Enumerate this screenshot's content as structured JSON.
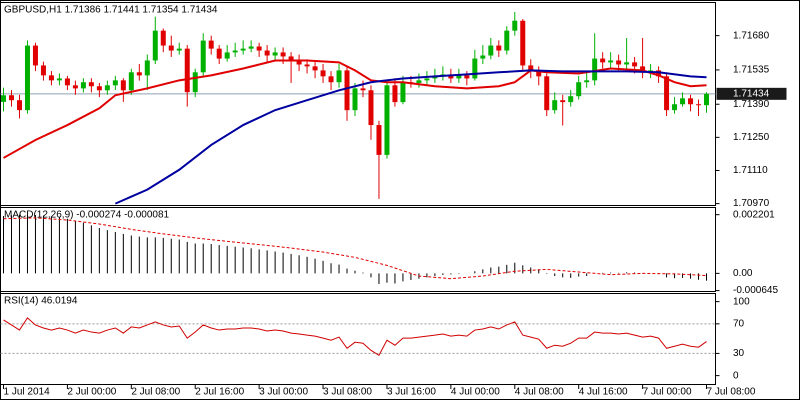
{
  "chart_data": [
    {
      "type": "candlestick",
      "title": "GBPUSD,H1 1.71386 1.71441 1.71354 1.71434",
      "up_color": "#00b000",
      "down_color": "#e00000",
      "open": [
        1.714,
        1.71428,
        1.71407,
        1.71365,
        1.71638,
        1.71554,
        1.71512,
        1.71491,
        1.71499,
        1.7147,
        1.71457,
        1.71483,
        1.71466,
        1.71449,
        1.7147,
        1.71491,
        1.71449,
        1.71525,
        1.71512,
        1.71575,
        1.71701,
        1.71638,
        1.71617,
        1.71625,
        1.71441,
        1.71525,
        1.71659,
        1.71625,
        1.71583,
        1.71609,
        1.71617,
        1.71625,
        1.71634,
        1.71617,
        1.71596,
        1.71609,
        1.71592,
        1.71575,
        1.71558,
        1.7155,
        1.71533,
        1.71508,
        1.71483,
        1.71533,
        1.71365,
        1.71457,
        1.71449,
        1.71302,
        1.71176,
        1.7147,
        1.71399,
        1.71483,
        1.7148,
        1.71491,
        1.71499,
        1.71508,
        1.71516,
        1.71499,
        1.71512,
        1.71499,
        1.71583,
        1.71596,
        1.71638,
        1.71617,
        1.71701,
        1.71743,
        1.71554,
        1.71533,
        1.71508,
        1.71365,
        1.71407,
        1.71399,
        1.71424,
        1.71483,
        1.71491,
        1.71583,
        1.71567,
        1.71575,
        1.71558,
        1.71567,
        1.7155,
        1.71525,
        1.71533,
        1.71508,
        1.71365,
        1.7139,
        1.71415,
        1.7139,
        1.71386
      ],
      "high": [
        1.7146,
        1.7145,
        1.7143,
        1.7166,
        1.7165,
        1.7157,
        1.7153,
        1.7152,
        1.7151,
        1.7149,
        1.715,
        1.715,
        1.7148,
        1.7149,
        1.7151,
        1.715,
        1.7154,
        1.7156,
        1.716,
        1.7176,
        1.7171,
        1.7168,
        1.7165,
        1.7164,
        1.7154,
        1.7169,
        1.7168,
        1.7164,
        1.7164,
        1.7165,
        1.7166,
        1.7166,
        1.7165,
        1.7164,
        1.7163,
        1.7163,
        1.7161,
        1.716,
        1.7158,
        1.7157,
        1.7156,
        1.7153,
        1.7156,
        1.7155,
        1.7148,
        1.7149,
        1.7147,
        1.7132,
        1.7149,
        1.715,
        1.7151,
        1.7151,
        1.7152,
        1.7153,
        1.7154,
        1.7155,
        1.7154,
        1.7154,
        1.7153,
        1.7162,
        1.7164,
        1.7167,
        1.7166,
        1.7172,
        1.7178,
        1.7175,
        1.7158,
        1.7155,
        1.7152,
        1.7144,
        1.7143,
        1.7145,
        1.7151,
        1.7153,
        1.7169,
        1.7161,
        1.7161,
        1.716,
        1.7167,
        1.7159,
        1.7167,
        1.7156,
        1.7155,
        1.7152,
        1.7142,
        1.7144,
        1.7143,
        1.7141,
        1.71441
      ],
      "low": [
        1.7136,
        1.7138,
        1.7133,
        1.7135,
        1.7153,
        1.7149,
        1.7147,
        1.7147,
        1.7145,
        1.7143,
        1.7144,
        1.7144,
        1.7142,
        1.7143,
        1.7145,
        1.714,
        1.7143,
        1.7149,
        1.7145,
        1.7156,
        1.7161,
        1.7159,
        1.716,
        1.7138,
        1.7142,
        1.7151,
        1.716,
        1.7156,
        1.7157,
        1.7159,
        1.716,
        1.7161,
        1.7159,
        1.7157,
        1.7157,
        1.7156,
        1.7148,
        1.7153,
        1.7152,
        1.715,
        1.7148,
        1.7145,
        1.7146,
        1.7132,
        1.7134,
        1.7142,
        1.7124,
        1.7099,
        1.7116,
        1.7138,
        1.7139,
        1.7146,
        1.7146,
        1.7147,
        1.7148,
        1.7149,
        1.7148,
        1.7148,
        1.7147,
        1.7149,
        1.7156,
        1.7158,
        1.7159,
        1.716,
        1.7168,
        1.7153,
        1.715,
        1.7147,
        1.7134,
        1.7135,
        1.713,
        1.7138,
        1.7141,
        1.7146,
        1.7147,
        1.7154,
        1.7154,
        1.7153,
        1.7154,
        1.7152,
        1.715,
        1.715,
        1.7148,
        1.7134,
        1.7135,
        1.7138,
        1.7136,
        1.7134,
        1.71354
      ],
      "close": [
        1.71428,
        1.71407,
        1.71365,
        1.71638,
        1.71554,
        1.71512,
        1.71491,
        1.71499,
        1.7147,
        1.71457,
        1.71483,
        1.71466,
        1.71449,
        1.7147,
        1.71491,
        1.71449,
        1.71525,
        1.71512,
        1.71575,
        1.71701,
        1.71638,
        1.71617,
        1.71625,
        1.71441,
        1.71525,
        1.71659,
        1.71625,
        1.71583,
        1.71609,
        1.71617,
        1.71625,
        1.71634,
        1.71617,
        1.71596,
        1.71609,
        1.71592,
        1.71575,
        1.71558,
        1.7155,
        1.71533,
        1.71508,
        1.71483,
        1.71533,
        1.71365,
        1.71457,
        1.71449,
        1.71302,
        1.71176,
        1.7147,
        1.71399,
        1.71483,
        1.7148,
        1.71491,
        1.71499,
        1.71508,
        1.71516,
        1.71499,
        1.71512,
        1.71499,
        1.71583,
        1.71596,
        1.71638,
        1.71617,
        1.71701,
        1.71743,
        1.71554,
        1.71533,
        1.71508,
        1.71365,
        1.71407,
        1.71399,
        1.71424,
        1.71483,
        1.71491,
        1.71583,
        1.71567,
        1.71575,
        1.71558,
        1.71567,
        1.7155,
        1.71525,
        1.71533,
        1.71508,
        1.71365,
        1.7139,
        1.71415,
        1.7139,
        1.71386,
        1.71434
      ],
      "overlays": [
        {
          "color": "#e00000",
          "x": [
            0,
            4,
            8,
            12,
            14,
            18,
            22,
            26,
            30,
            34,
            38,
            42,
            44,
            46,
            48,
            50,
            54,
            58,
            62,
            64,
            66,
            68,
            72,
            76,
            80,
            82,
            84,
            86,
            88
          ],
          "values": [
            1.71163,
            1.71239,
            1.71302,
            1.71373,
            1.71428,
            1.71457,
            1.71491,
            1.71512,
            1.71541,
            1.71575,
            1.71575,
            1.71567,
            1.71533,
            1.71491,
            1.71483,
            1.71483,
            1.71466,
            1.71457,
            1.71466,
            1.71483,
            1.71533,
            1.71525,
            1.7152,
            1.71541,
            1.71533,
            1.71512,
            1.71483,
            1.71466,
            1.7147
          ]
        },
        {
          "color": "#0000a0",
          "x": [
            14,
            18,
            22,
            26,
            30,
            34,
            38,
            42,
            46,
            50,
            54,
            58,
            62,
            66,
            70,
            74,
            78,
            82,
            86,
            88
          ],
          "values": [
            1.7097,
            1.71029,
            1.71113,
            1.71218,
            1.71302,
            1.71365,
            1.71407,
            1.71449,
            1.71483,
            1.71499,
            1.71508,
            1.71516,
            1.71525,
            1.71533,
            1.71529,
            1.71529,
            1.71529,
            1.71525,
            1.71508,
            1.71504
          ]
        }
      ],
      "last_price": 1.71434,
      "ylim": [
        1.70962,
        1.7182
      ],
      "yticks": [
        {
          "value": 1.7168,
          "label": "1.71680"
        },
        1.71535,
        {
          "value": 1.7139,
          "label": "1.71390"
        },
        {
          "value": 1.7125,
          "label": "1.71250"
        },
        {
          "value": 1.7111,
          "label": "1.71110"
        },
        {
          "value": 1.7097,
          "label": "1.70970"
        }
      ],
      "xlim": [
        -0.375,
        89.125
      ],
      "xticks": [
        {
          "value": 0,
          "label": "1 Jul 2014"
        },
        {
          "value": 8,
          "label": "2 Jul 00:00"
        },
        {
          "value": 16,
          "label": "2 Jul 08:00"
        },
        {
          "value": 24,
          "label": "2 Jul 16:00"
        },
        {
          "value": 32,
          "label": "3 Jul 00:00"
        },
        {
          "value": 40,
          "label": "3 Jul 08:00"
        },
        {
          "value": 48,
          "label": "3 Jul 16:00"
        },
        {
          "value": 56,
          "label": "4 Jul 00:00"
        },
        {
          "value": 64,
          "label": "4 Jul 08:00"
        },
        {
          "value": 72,
          "label": "4 Jul 16:00"
        },
        {
          "value": 80,
          "label": "7 Jul 00:00"
        },
        {
          "value": 88,
          "label": "7 Jul 08:00"
        }
      ]
    },
    {
      "type": "macd",
      "title": "MACD(12,26,9) -0.000274 -0.000081",
      "color": "#000000",
      "values": [
        0.00215,
        0.00218,
        0.0022,
        0.0022,
        0.00219,
        0.00217,
        0.00214,
        0.0021,
        0.00205,
        0.00198,
        0.0019,
        0.0018,
        0.0017,
        0.00162,
        0.00155,
        0.00148,
        0.00142,
        0.00138,
        0.00135,
        0.00135,
        0.00133,
        0.0013,
        0.00127,
        0.00118,
        0.00112,
        0.00112,
        0.0011,
        0.00106,
        0.00103,
        0.001,
        0.00097,
        0.00094,
        0.0009,
        0.00086,
        0.00082,
        0.00078,
        0.00073,
        0.00068,
        0.00062,
        0.00055,
        0.00047,
        0.00038,
        0.00033,
        0.00018,
        0.0001,
        3e-05,
        -0.00015,
        -0.0004,
        -0.00035,
        -0.00038,
        -0.0003,
        -0.00025,
        -0.0002,
        -0.00015,
        -0.0001,
        -6e-05,
        -4e-05,
        -2e-05,
        0.0,
        8e-05,
        0.00015,
        0.00022,
        0.00025,
        0.00032,
        0.0004,
        0.0003,
        0.00022,
        0.00015,
        -2e-05,
        -0.0001,
        -0.00015,
        -0.00017,
        -0.00012,
        -0.0001,
        0.0,
        2e-05,
        3e-05,
        2e-05,
        4e-05,
        3e-05,
        1e-05,
        0.0,
        -3e-05,
        -0.00015,
        -0.00018,
        -0.00017,
        -0.0002,
        -0.00024,
        -0.000274
      ],
      "signal": {
        "color": "#e00000",
        "x": [
          0,
          4,
          8,
          12,
          16,
          20,
          24,
          28,
          32,
          36,
          40,
          44,
          48,
          52,
          56,
          60,
          64,
          68,
          72,
          76,
          80,
          84,
          88
        ],
        "values": [
          0.00205,
          0.00208,
          0.002,
          0.00185,
          0.00165,
          0.00148,
          0.00133,
          0.0012,
          0.00108,
          0.00095,
          0.0008,
          0.0006,
          0.0003,
          -0.0001,
          -0.0002,
          -0.0001,
          8e-05,
          0.00015,
          5e-05,
          -5e-05,
          0.0,
          -2e-05,
          -8.1e-05
        ]
      },
      "ylim": [
        -0.00068,
        0.00247
      ],
      "yticks": [
        0.002201,
        {
          "value": 0,
          "label": "0.00"
        },
        -0.000645
      ]
    },
    {
      "type": "line",
      "title": "RSI(14) 46.0194",
      "color": "#d00000",
      "values": [
        75.3,
        68.5,
        61.6,
        78.1,
        68.5,
        64.4,
        61.6,
        64.4,
        61.6,
        57.5,
        61.6,
        58.9,
        57.5,
        61.6,
        64.4,
        57.5,
        65.8,
        64.4,
        68.5,
        72.6,
        68.5,
        65.8,
        67.1,
        50.7,
        58.9,
        68.5,
        64.4,
        61.6,
        63.0,
        63.0,
        64.4,
        64.4,
        63.0,
        60.3,
        61.6,
        60.3,
        57.5,
        56.2,
        54.8,
        53.4,
        50.7,
        47.9,
        52.1,
        37.0,
        45.2,
        43.8,
        34.2,
        27.4,
        47.9,
        41.1,
        50.7,
        50.7,
        52.1,
        53.4,
        54.8,
        56.2,
        53.4,
        54.8,
        53.4,
        61.6,
        63.0,
        65.8,
        63.0,
        68.5,
        72.6,
        54.8,
        52.1,
        49.3,
        37.0,
        41.1,
        39.7,
        43.8,
        50.7,
        50.7,
        58.9,
        57.5,
        57.5,
        56.2,
        57.5,
        54.8,
        52.1,
        53.4,
        50.7,
        37.0,
        39.7,
        42.5,
        39.7,
        38.4,
        46.0194
      ],
      "levels": [
        70,
        30
      ],
      "ylim": [
        -12,
        111
      ],
      "yticks": [
        100,
        70,
        30,
        0
      ]
    }
  ]
}
